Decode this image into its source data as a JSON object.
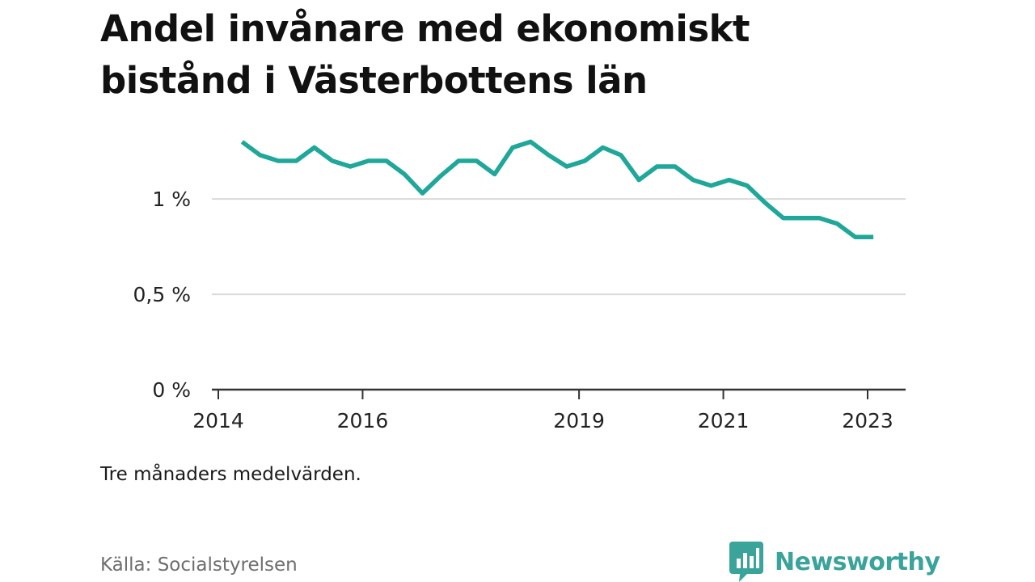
{
  "title": "Andel invånare med ekonomiskt bistånd i Västerbottens län",
  "note": "Tre månaders medelvärden.",
  "source": "Källa: Socialstyrelsen",
  "brand": {
    "name": "Newsworthy",
    "logo_icon": "bar-chart-speech-bubble-icon",
    "color": "#3aa39a"
  },
  "chart_data": {
    "type": "line",
    "title": "Andel invånare med ekonomiskt bistånd i Västerbottens län",
    "xlabel": "",
    "ylabel": "",
    "ylim": [
      0,
      1.45
    ],
    "grid": true,
    "yticks": [
      {
        "value": 0,
        "label": "0 %"
      },
      {
        "value": 0.5,
        "label": "0,5 %"
      },
      {
        "value": 1,
        "label": "1 %"
      }
    ],
    "xticks": [
      {
        "value": 2014.0,
        "label": "2014"
      },
      {
        "value": 2016.0,
        "label": "2016"
      },
      {
        "value": 2019.0,
        "label": "2019"
      },
      {
        "value": 2021.0,
        "label": "2021"
      },
      {
        "value": 2023.0,
        "label": "2023"
      }
    ],
    "xlim": [
      2014.0,
      2023.5
    ],
    "color": "#1fa79a",
    "series": [
      {
        "values": [
          {
            "x": 2014.33,
            "y": 1.3
          },
          {
            "x": 2014.58,
            "y": 1.23
          },
          {
            "x": 2014.83,
            "y": 1.2
          },
          {
            "x": 2015.08,
            "y": 1.2
          },
          {
            "x": 2015.33,
            "y": 1.27
          },
          {
            "x": 2015.58,
            "y": 1.2
          },
          {
            "x": 2015.83,
            "y": 1.17
          },
          {
            "x": 2016.08,
            "y": 1.2
          },
          {
            "x": 2016.33,
            "y": 1.2
          },
          {
            "x": 2016.58,
            "y": 1.13
          },
          {
            "x": 2016.83,
            "y": 1.03
          },
          {
            "x": 2017.08,
            "y": 1.12
          },
          {
            "x": 2017.33,
            "y": 1.2
          },
          {
            "x": 2017.58,
            "y": 1.2
          },
          {
            "x": 2017.83,
            "y": 1.13
          },
          {
            "x": 2018.08,
            "y": 1.27
          },
          {
            "x": 2018.33,
            "y": 1.3
          },
          {
            "x": 2018.58,
            "y": 1.23
          },
          {
            "x": 2018.83,
            "y": 1.17
          },
          {
            "x": 2019.08,
            "y": 1.2
          },
          {
            "x": 2019.33,
            "y": 1.27
          },
          {
            "x": 2019.58,
            "y": 1.23
          },
          {
            "x": 2019.83,
            "y": 1.1
          },
          {
            "x": 2020.08,
            "y": 1.17
          },
          {
            "x": 2020.33,
            "y": 1.17
          },
          {
            "x": 2020.58,
            "y": 1.1
          },
          {
            "x": 2020.83,
            "y": 1.07
          },
          {
            "x": 2021.08,
            "y": 1.1
          },
          {
            "x": 2021.33,
            "y": 1.07
          },
          {
            "x": 2021.58,
            "y": 0.98
          },
          {
            "x": 2021.83,
            "y": 0.9
          },
          {
            "x": 2022.08,
            "y": 0.9
          },
          {
            "x": 2022.33,
            "y": 0.9
          },
          {
            "x": 2022.58,
            "y": 0.87
          },
          {
            "x": 2022.83,
            "y": 0.8
          },
          {
            "x": 2023.08,
            "y": 0.8
          }
        ]
      }
    ]
  }
}
